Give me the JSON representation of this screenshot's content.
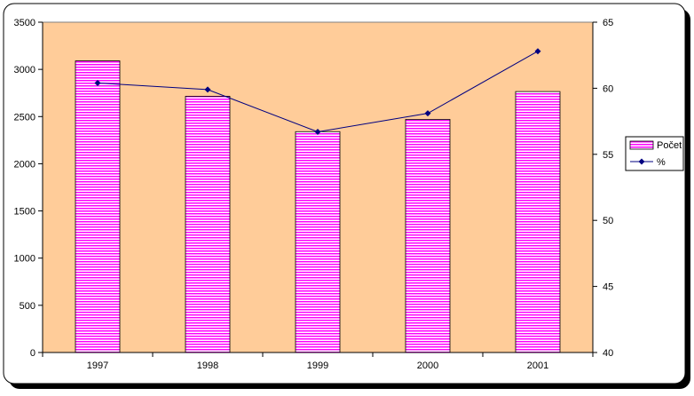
{
  "chart_data": {
    "type": "bar",
    "categories": [
      "1997",
      "1998",
      "1999",
      "2000",
      "2001"
    ],
    "series": [
      {
        "name": "Počet",
        "type": "bar",
        "axis": "left",
        "values": [
          3090,
          2715,
          2340,
          2470,
          2765
        ]
      },
      {
        "name": "%",
        "type": "line",
        "axis": "right",
        "values": [
          60.4,
          59.9,
          56.7,
          58.1,
          62.8
        ]
      }
    ],
    "y_left": {
      "min": 0,
      "max": 3500,
      "step": 500
    },
    "y_right": {
      "min": 40,
      "max": 65,
      "step": 5
    },
    "legend_position": "right",
    "grid": false,
    "colors": {
      "plot_background": "#FFCC99",
      "bar_fill": "#FF00FF",
      "bar_stripe": "#FFFFFF",
      "line": "#000080",
      "marker": "#000080"
    }
  }
}
